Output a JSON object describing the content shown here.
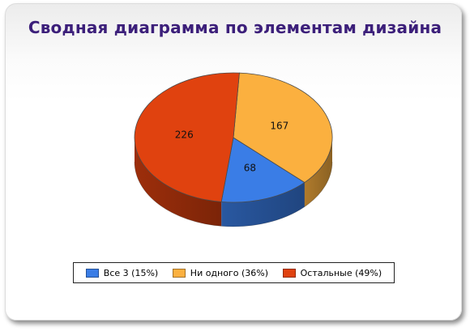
{
  "chart_data": {
    "type": "pie",
    "title": "Сводная диаграмма по элементам дизайна",
    "slices": [
      {
        "label": "Все 3 (15%)",
        "value": 68,
        "color": "#3a7de6"
      },
      {
        "label": "Ни одного (36%)",
        "value": 167,
        "color": "#fbb03f"
      },
      {
        "label": "Остальные (49%)",
        "value": 226,
        "color": "#e0420f"
      }
    ],
    "legend": "bottom"
  }
}
